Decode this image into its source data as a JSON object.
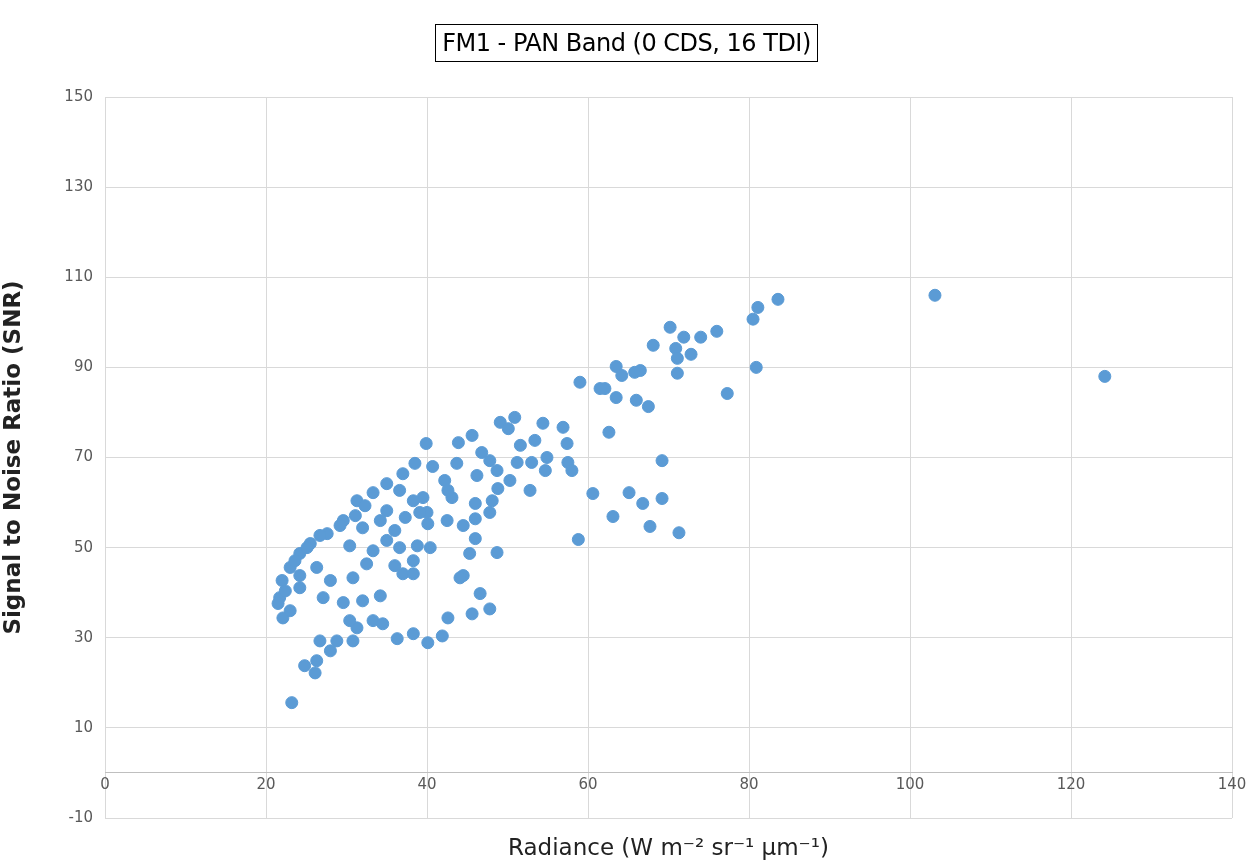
{
  "chart_data": {
    "type": "scatter",
    "title": "FM1 - PAN Band (0 CDS, 16 TDI)",
    "xlabel": "Radiance (W m⁻² sr⁻¹ μm⁻¹)",
    "ylabel": "Signal to Noise Ratio (SNR)",
    "color": "#5b9bd5",
    "marker": "circle",
    "grid": true,
    "xlim": [
      0,
      140
    ],
    "xticks": [
      0,
      20,
      40,
      60,
      80,
      100,
      120,
      140
    ],
    "ylim": [
      -10,
      150
    ],
    "yticks": [
      -10,
      10,
      30,
      50,
      70,
      90,
      110,
      130,
      150
    ],
    "x": [
      103.1,
      124.2,
      83.6,
      81.1,
      80.5,
      80.9,
      77.3,
      70.2,
      68.1,
      70.9,
      71.9,
      74.0,
      76.0,
      71.1,
      72.8,
      71.1,
      63.5,
      64.2,
      65.8,
      66.5,
      62.1,
      63.5,
      66.0,
      67.5,
      62.6,
      69.2,
      65.1,
      66.8,
      69.2,
      63.1,
      67.7,
      71.3,
      50.9,
      49.1,
      50.1,
      51.6,
      51.2,
      53.0,
      53.4,
      54.4,
      54.9,
      54.7,
      56.9,
      57.4,
      57.5,
      58.0,
      52.8,
      59.0,
      61.5,
      60.6,
      58.8,
      45.6,
      43.9,
      39.9,
      40.7,
      43.7,
      42.2,
      43.1,
      42.5,
      40.1,
      44.5,
      46.0,
      46.0,
      46.2,
      46.8,
      47.8,
      48.7,
      48.8,
      48.1,
      47.8,
      50.3,
      46.0,
      45.3,
      48.7,
      44.5,
      46.6,
      47.8,
      45.6,
      42.6,
      41.9,
      40.1,
      40.4,
      39.5,
      40.0,
      38.5,
      37.0,
      42.6,
      31.3,
      33.3,
      35.0,
      36.6,
      38.3,
      35.0,
      37.3,
      39.1,
      29.6,
      27.6,
      25.5,
      24.2,
      23.0,
      22.0,
      21.7,
      22.1,
      24.2,
      26.3,
      27.1,
      32.0,
      33.3,
      35.0,
      36.6,
      38.8,
      32.5,
      36.0,
      37.0,
      38.3,
      38.3,
      30.8,
      29.6,
      32.0,
      34.2,
      33.3,
      31.3,
      30.8,
      28.8,
      28.0,
      26.3,
      26.1,
      34.5,
      36.3,
      38.3,
      23.2,
      44.1,
      21.5,
      25.1,
      23.6,
      29.2,
      26.7,
      31.1,
      32.3,
      34.2,
      36.0,
      30.4,
      24.2,
      22.4,
      23.0,
      28.0,
      30.4,
      26.7,
      24.8
    ],
    "values": [
      106.0,
      88.0,
      105.1,
      103.3,
      100.7,
      90.0,
      84.2,
      98.9,
      94.9,
      94.2,
      96.7,
      96.7,
      98.0,
      92.0,
      92.9,
      88.7,
      90.2,
      88.2,
      88.9,
      89.3,
      85.3,
      83.3,
      82.7,
      81.3,
      75.6,
      69.3,
      62.2,
      59.8,
      60.9,
      56.9,
      54.7,
      53.3,
      78.9,
      77.8,
      76.4,
      72.7,
      68.9,
      68.9,
      73.8,
      77.6,
      70.0,
      67.1,
      76.7,
      73.1,
      68.9,
      67.1,
      62.7,
      86.7,
      85.3,
      62.0,
      51.8,
      74.9,
      73.3,
      73.1,
      68.0,
      68.7,
      64.9,
      61.1,
      56.0,
      55.3,
      54.9,
      59.8,
      56.4,
      66.0,
      71.1,
      69.3,
      67.1,
      63.1,
      60.4,
      57.8,
      64.9,
      52.0,
      48.7,
      48.9,
      43.8,
      39.8,
      36.4,
      35.3,
      34.4,
      30.4,
      28.9,
      50.0,
      61.1,
      57.8,
      68.7,
      66.4,
      62.7,
      60.4,
      62.2,
      64.2,
      62.7,
      60.4,
      58.2,
      56.7,
      57.8,
      56.0,
      53.1,
      50.9,
      48.7,
      45.6,
      42.7,
      38.9,
      34.4,
      41.1,
      45.6,
      38.9,
      54.4,
      49.3,
      51.6,
      50.0,
      50.4,
      46.4,
      46.0,
      44.2,
      44.2,
      47.1,
      43.3,
      37.8,
      38.2,
      39.3,
      33.8,
      32.2,
      29.3,
      29.3,
      27.1,
      24.9,
      22.2,
      33.1,
      29.8,
      30.9,
      15.6,
      43.3,
      37.6,
      50.0,
      47.1,
      54.9,
      52.7,
      57.1,
      59.3,
      56.0,
      53.8,
      50.4,
      43.8,
      40.4,
      36.0,
      42.7,
      33.8,
      29.3,
      23.8
    ]
  }
}
